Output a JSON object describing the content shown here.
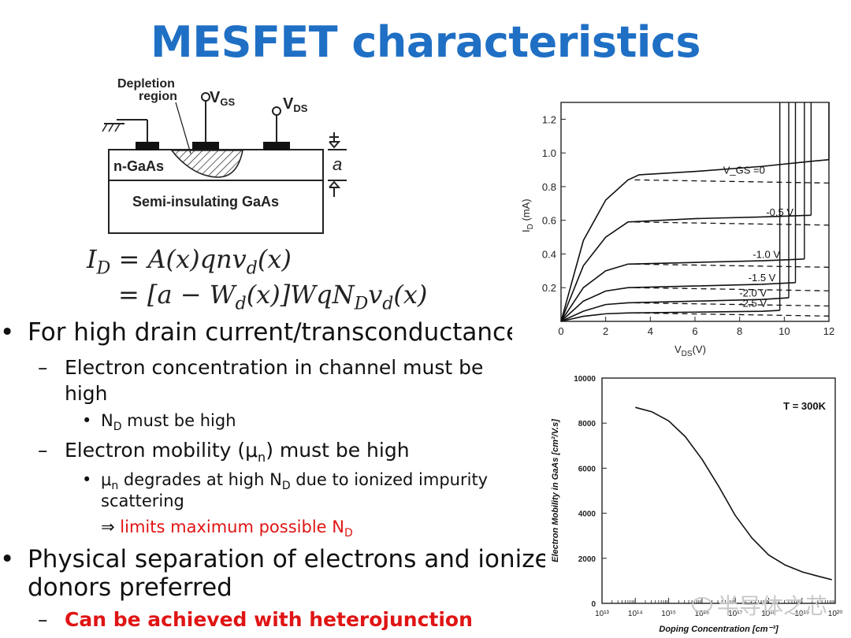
{
  "slide": {
    "title": "MESFET characteristics"
  },
  "device_diagram": {
    "depletion_label_1": "Depletion",
    "depletion_label_2": "region",
    "vgs_label": "V",
    "vgs_sub": "GS",
    "vds_label": "V",
    "vds_sub": "DS",
    "channel_label": "n-GaAs",
    "substrate_label": "Semi-insulating GaAs",
    "thickness_label": "a"
  },
  "equations": {
    "line1": "I_D = A(x) q n v_d(x)",
    "line2": "= [a − W_d(x)] W q N_D v_d(x)"
  },
  "bullets": {
    "b1": "For high drain current/transconductance",
    "b1a": "Electron concentration in channel must be",
    "b1a_cont": "high",
    "b1a_i_main": "N",
    "b1a_i_sub": "D",
    "b1a_i_rest": " must be high",
    "b1b_pre": "Electron mobility (μ",
    "b1b_sub": "n",
    "b1b_post": ") must be high",
    "b1b_i_pre": "μ",
    "b1b_i_sub": "n",
    "b1b_i_mid": " degrades at high N",
    "b1b_i_sub2": "D",
    "b1b_i_post": " due to ionized impurity",
    "b1b_i_cont": "scattering",
    "implies_arrow": "⇒",
    "implies_text": "limits maximum possible N",
    "implies_sub": "D",
    "b2": "Physical separation of electrons and ionized",
    "b2_cont": "donors preferred",
    "b2a": "Can be achieved with heterojunction"
  },
  "watermark": "半导体之芯",
  "chart_data": [
    {
      "type": "line",
      "xlabel": "V_DS(V)",
      "ylabel": "I_D (mA)",
      "xlim": [
        0,
        12
      ],
      "ylim": [
        0,
        1.3
      ],
      "xticks": [
        0,
        2,
        4,
        6,
        8,
        10,
        12
      ],
      "yticks": [
        0.2,
        0.4,
        0.6,
        0.8,
        1.0,
        1.2
      ],
      "series": [
        {
          "name": "V_GS =0",
          "x": [
            0,
            1,
            2,
            3,
            3.5,
            6,
            9,
            11.2,
            12
          ],
          "y": [
            0,
            0.48,
            0.72,
            0.84,
            0.87,
            0.89,
            0.92,
            0.95,
            0.96
          ]
        },
        {
          "name": "-0.5 V",
          "x": [
            0,
            1,
            2,
            3,
            6,
            9,
            11.2
          ],
          "y": [
            0,
            0.33,
            0.5,
            0.59,
            0.61,
            0.62,
            0.63
          ]
        },
        {
          "name": "-1.0 V",
          "x": [
            0,
            1,
            2,
            3,
            6,
            9,
            10.9
          ],
          "y": [
            0,
            0.2,
            0.3,
            0.34,
            0.35,
            0.36,
            0.37
          ]
        },
        {
          "name": "-1.5 V",
          "x": [
            0,
            1,
            2,
            3,
            6,
            9,
            10.5
          ],
          "y": [
            0,
            0.12,
            0.18,
            0.2,
            0.21,
            0.22,
            0.23
          ]
        },
        {
          "name": "-2.0 V",
          "x": [
            0,
            1,
            2,
            3,
            6,
            9,
            10.2
          ],
          "y": [
            0,
            0.06,
            0.1,
            0.11,
            0.12,
            0.13,
            0.14
          ]
        },
        {
          "name": "-2.5 V",
          "x": [
            0,
            1,
            2,
            3,
            6,
            9,
            9.8
          ],
          "y": [
            0,
            0.03,
            0.045,
            0.05,
            0.055,
            0.06,
            0.065
          ]
        }
      ]
    },
    {
      "type": "line",
      "title": "T = 300K",
      "xlabel": "Doping Concentration [cm⁻³]",
      "ylabel": "Electron Mobility in GaAs [cm²/V.s]",
      "xscale": "log",
      "xlim": [
        10000000000000.0,
        1e+20
      ],
      "ylim": [
        0,
        10000
      ],
      "xticks": [
        "10¹³",
        "10¹⁴",
        "10¹⁵",
        "10¹⁶",
        "10¹⁷",
        "10¹⁸",
        "10¹⁹",
        "10²⁰"
      ],
      "yticks": [
        0,
        2000,
        4000,
        6000,
        8000,
        10000
      ],
      "series": [
        {
          "log10_x": [
            14.0,
            14.5,
            15.0,
            15.5,
            16.0,
            16.5,
            17.0,
            17.5,
            18.0,
            18.5,
            19.0,
            19.5,
            19.9
          ],
          "y": [
            8700,
            8500,
            8100,
            7400,
            6400,
            5200,
            3900,
            2900,
            2150,
            1700,
            1400,
            1200,
            1050
          ]
        }
      ]
    }
  ]
}
